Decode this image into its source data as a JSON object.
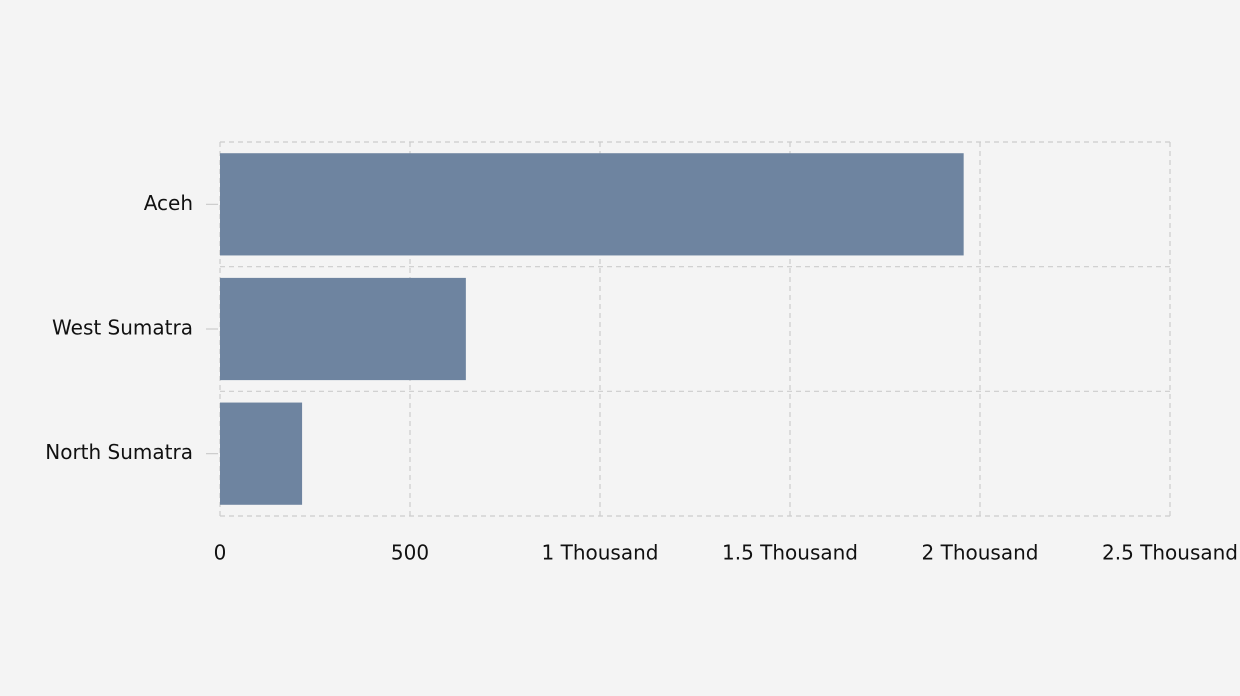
{
  "chart_data": {
    "type": "bar",
    "orientation": "horizontal",
    "categories": [
      "Aceh",
      "West Sumatra",
      "North Sumatra"
    ],
    "values": [
      1957,
      647,
      216
    ],
    "xlim": [
      0,
      2500
    ],
    "x_ticks": [
      0,
      500,
      1000,
      1500,
      2000,
      2500
    ],
    "x_tick_labels": [
      "0",
      "500",
      "1 Thousand",
      "1.5 Thousand",
      "2 Thousand",
      "2.5 Thousand"
    ],
    "title": "",
    "xlabel": "",
    "ylabel": "",
    "grid": true,
    "legend": "none",
    "colors": {
      "bar": "#6e84a0",
      "background": "#f4f4f4",
      "grid": "#cccccc",
      "text": "#111111"
    }
  }
}
